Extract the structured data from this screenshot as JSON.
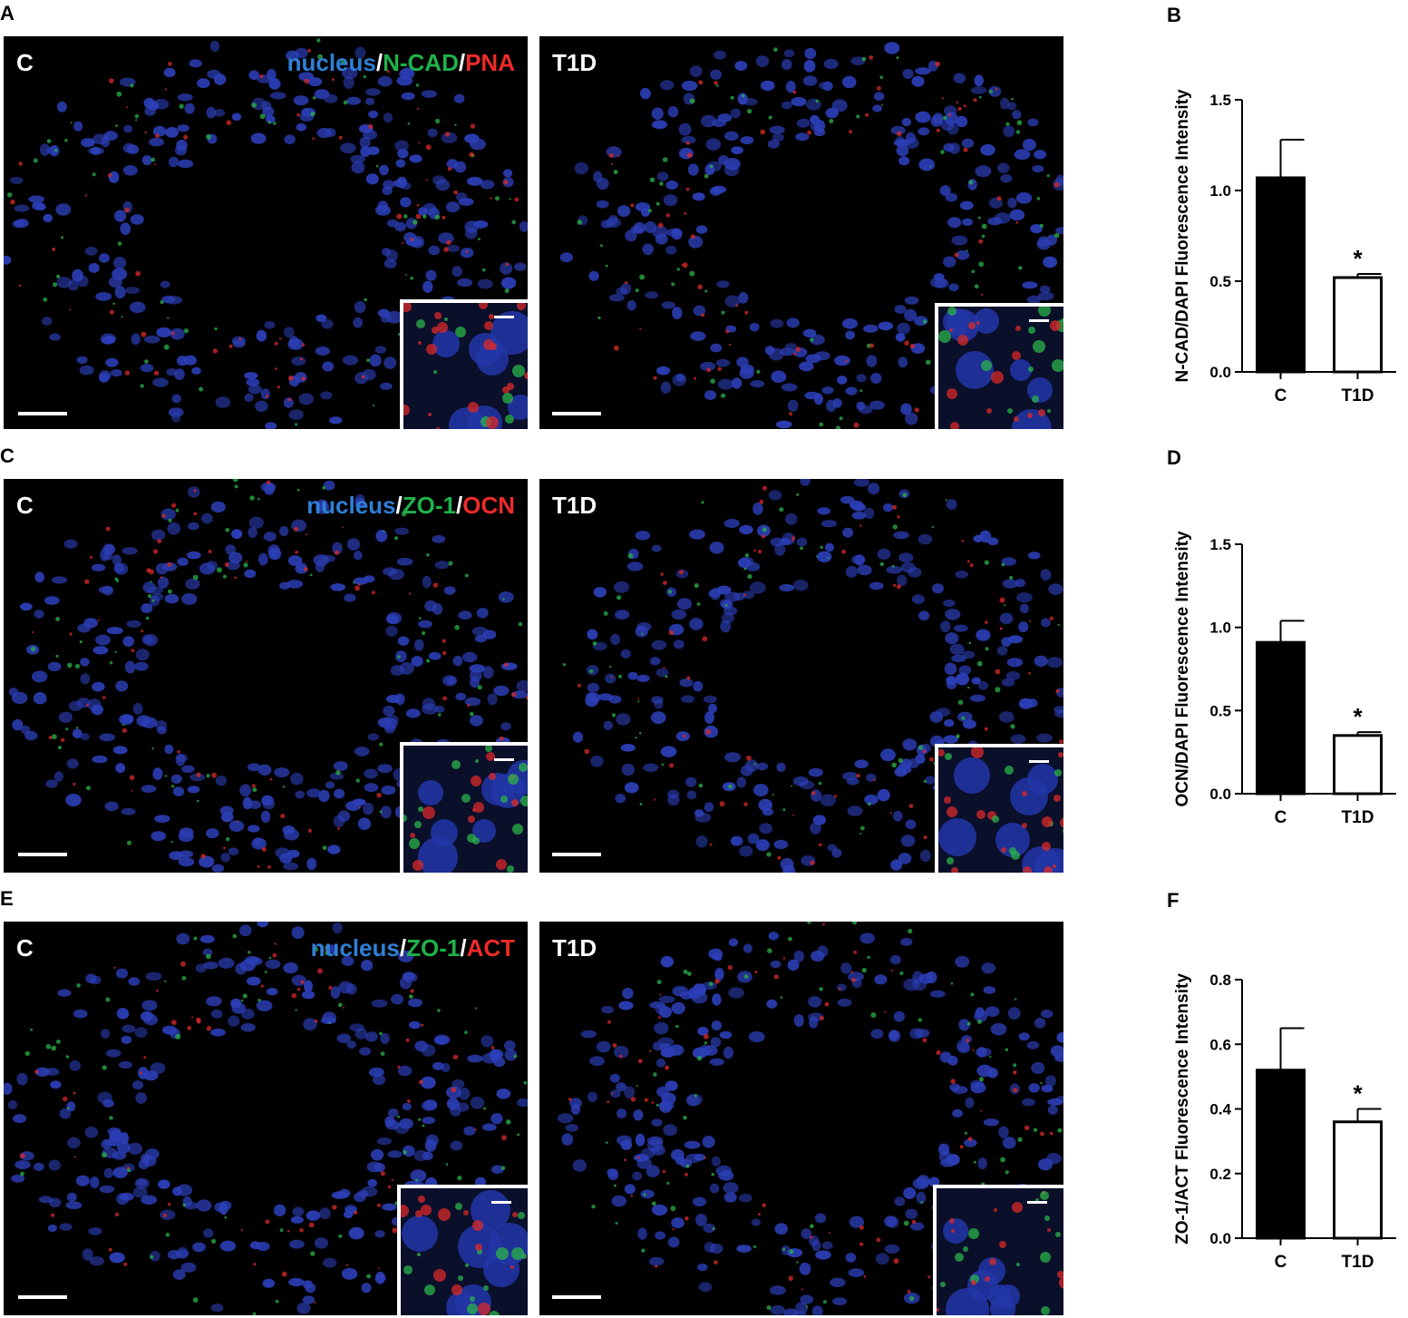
{
  "panel_labels": [
    "A",
    "B",
    "C",
    "D",
    "E",
    "F"
  ],
  "micrographs": [
    {
      "row": "A",
      "left": {
        "condition": "C",
        "stain": [
          {
            "text": "nucleus",
            "color": "#2f7fd6"
          },
          {
            "text": "/",
            "color": "#ffffff"
          },
          {
            "text": "N-CAD",
            "color": "#1fb24a"
          },
          {
            "text": "/",
            "color": "#ffffff"
          },
          {
            "text": "PNA",
            "color": "#ee2a2a"
          }
        ]
      },
      "right": {
        "condition": "T1D"
      }
    },
    {
      "row": "C",
      "left": {
        "condition": "C",
        "stain": [
          {
            "text": "nucleus",
            "color": "#2f7fd6"
          },
          {
            "text": "/",
            "color": "#ffffff"
          },
          {
            "text": "ZO-1",
            "color": "#1fb24a"
          },
          {
            "text": "/",
            "color": "#ffffff"
          },
          {
            "text": "OCN",
            "color": "#ee2a2a"
          }
        ]
      },
      "right": {
        "condition": "T1D"
      }
    },
    {
      "row": "E",
      "left": {
        "condition": "C",
        "stain": [
          {
            "text": "nucleus",
            "color": "#2f7fd6"
          },
          {
            "text": "/",
            "color": "#ffffff"
          },
          {
            "text": "ZO-1",
            "color": "#1fb24a"
          },
          {
            "text": "/",
            "color": "#ffffff"
          },
          {
            "text": "ACT",
            "color": "#ee2a2a"
          }
        ]
      },
      "right": {
        "condition": "T1D"
      }
    }
  ],
  "chart_data": [
    {
      "panel": "B",
      "type": "bar",
      "categories": [
        "C",
        "T1D"
      ],
      "values": [
        1.07,
        0.52
      ],
      "errors": [
        0.21,
        0.02
      ],
      "bar_fill": [
        "#000000",
        "#ffffff"
      ],
      "ylabel": "N-CAD/DAPI Fluorescence Intensity",
      "ylim": [
        0,
        1.5
      ],
      "yticks": [
        "0.0",
        "0.5",
        "1.0",
        "1.5"
      ],
      "significance": [
        "",
        "*"
      ]
    },
    {
      "panel": "D",
      "type": "bar",
      "categories": [
        "C",
        "T1D"
      ],
      "values": [
        0.91,
        0.35
      ],
      "errors": [
        0.13,
        0.02
      ],
      "bar_fill": [
        "#000000",
        "#ffffff"
      ],
      "ylabel": "OCN/DAPI Fluorescence Intensity",
      "ylim": [
        0,
        1.5
      ],
      "yticks": [
        "0.0",
        "0.5",
        "1.0",
        "1.5"
      ],
      "significance": [
        "",
        "*"
      ]
    },
    {
      "panel": "F",
      "type": "bar",
      "categories": [
        "C",
        "T1D"
      ],
      "values": [
        0.52,
        0.36
      ],
      "errors": [
        0.13,
        0.04
      ],
      "bar_fill": [
        "#000000",
        "#ffffff"
      ],
      "ylabel": "ZO-1/ACT Fluorescence Intensity",
      "ylim": [
        0,
        0.8
      ],
      "yticks": [
        "0.0",
        "0.2",
        "0.4",
        "0.6",
        "0.8"
      ],
      "significance": [
        "",
        "*"
      ]
    }
  ]
}
